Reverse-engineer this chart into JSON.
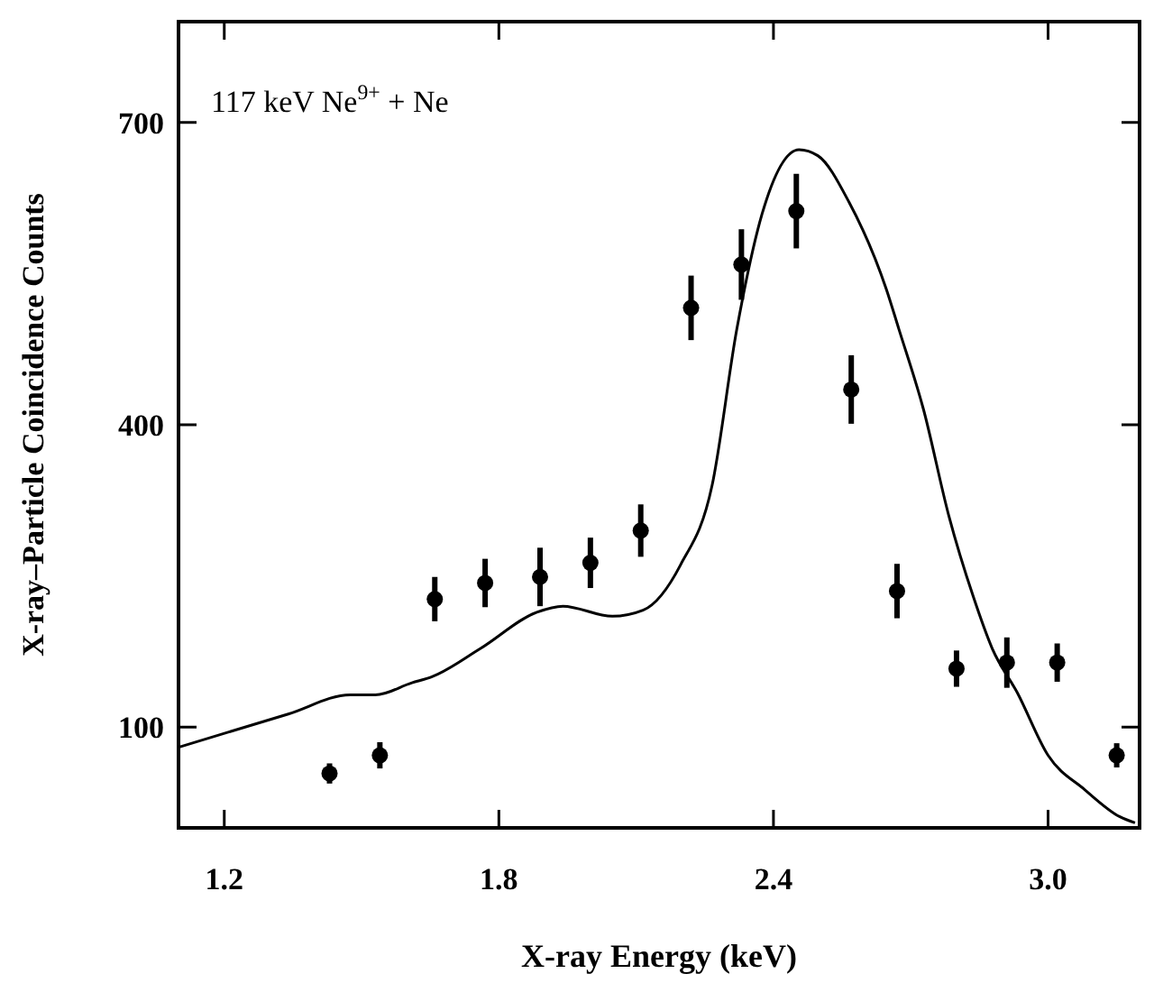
{
  "chart_data": {
    "type": "scatter",
    "xlabel": "X-ray Energy (keV)",
    "ylabel": "X-ray–Particle Coincidence Counts",
    "annotations": [
      "117 keV Ne$^{9+}$ + Ne"
    ],
    "xlim": [
      1.1,
      3.2
    ],
    "xticks": [
      1.2,
      1.8,
      2.4,
      {
        "value": 3,
        "label": "3.0"
      }
    ],
    "ylim": [
      0,
      800
    ],
    "yticks": [
      100,
      400,
      700
    ],
    "grid": false,
    "series": [
      {
        "color": "#000000",
        "marker": "circle",
        "x": [
          1.43,
          1.54,
          1.66,
          1.77,
          1.89,
          2.0,
          2.11,
          2.22,
          2.33,
          2.45,
          2.57,
          2.67,
          2.8,
          2.91,
          3.02,
          3.15
        ],
        "values": [
          54,
          72,
          227,
          243,
          249,
          263,
          295,
          516,
          559,
          612,
          435,
          235,
          158,
          164,
          164,
          72
        ],
        "errors": [
          10,
          13,
          22,
          24,
          29,
          25,
          26,
          32,
          35,
          37,
          34,
          27,
          18,
          25,
          19,
          12
        ]
      },
      {
        "type": "line",
        "color": "#000000",
        "line_style": "solid",
        "x": [
          1.1,
          1.34,
          1.475,
          1.53,
          1.61,
          1.654,
          1.76,
          1.883,
          1.94,
          2.048,
          2.115,
          2.197,
          2.266,
          2.32,
          2.375,
          2.456,
          2.497,
          2.565,
          2.647,
          2.674,
          2.728,
          2.783,
          2.837,
          2.878,
          2.933,
          3.0,
          3.08,
          3.157,
          3.19
        ],
        "values": [
          80,
          113,
          132,
          132,
          144,
          150,
          178,
          214,
          220,
          210,
          216,
          261,
          340,
          495,
          609,
          673,
          667,
          621,
          534,
          495,
          415,
          310,
          229,
          178,
          134,
          72,
          38,
          11,
          5
        ]
      }
    ]
  }
}
